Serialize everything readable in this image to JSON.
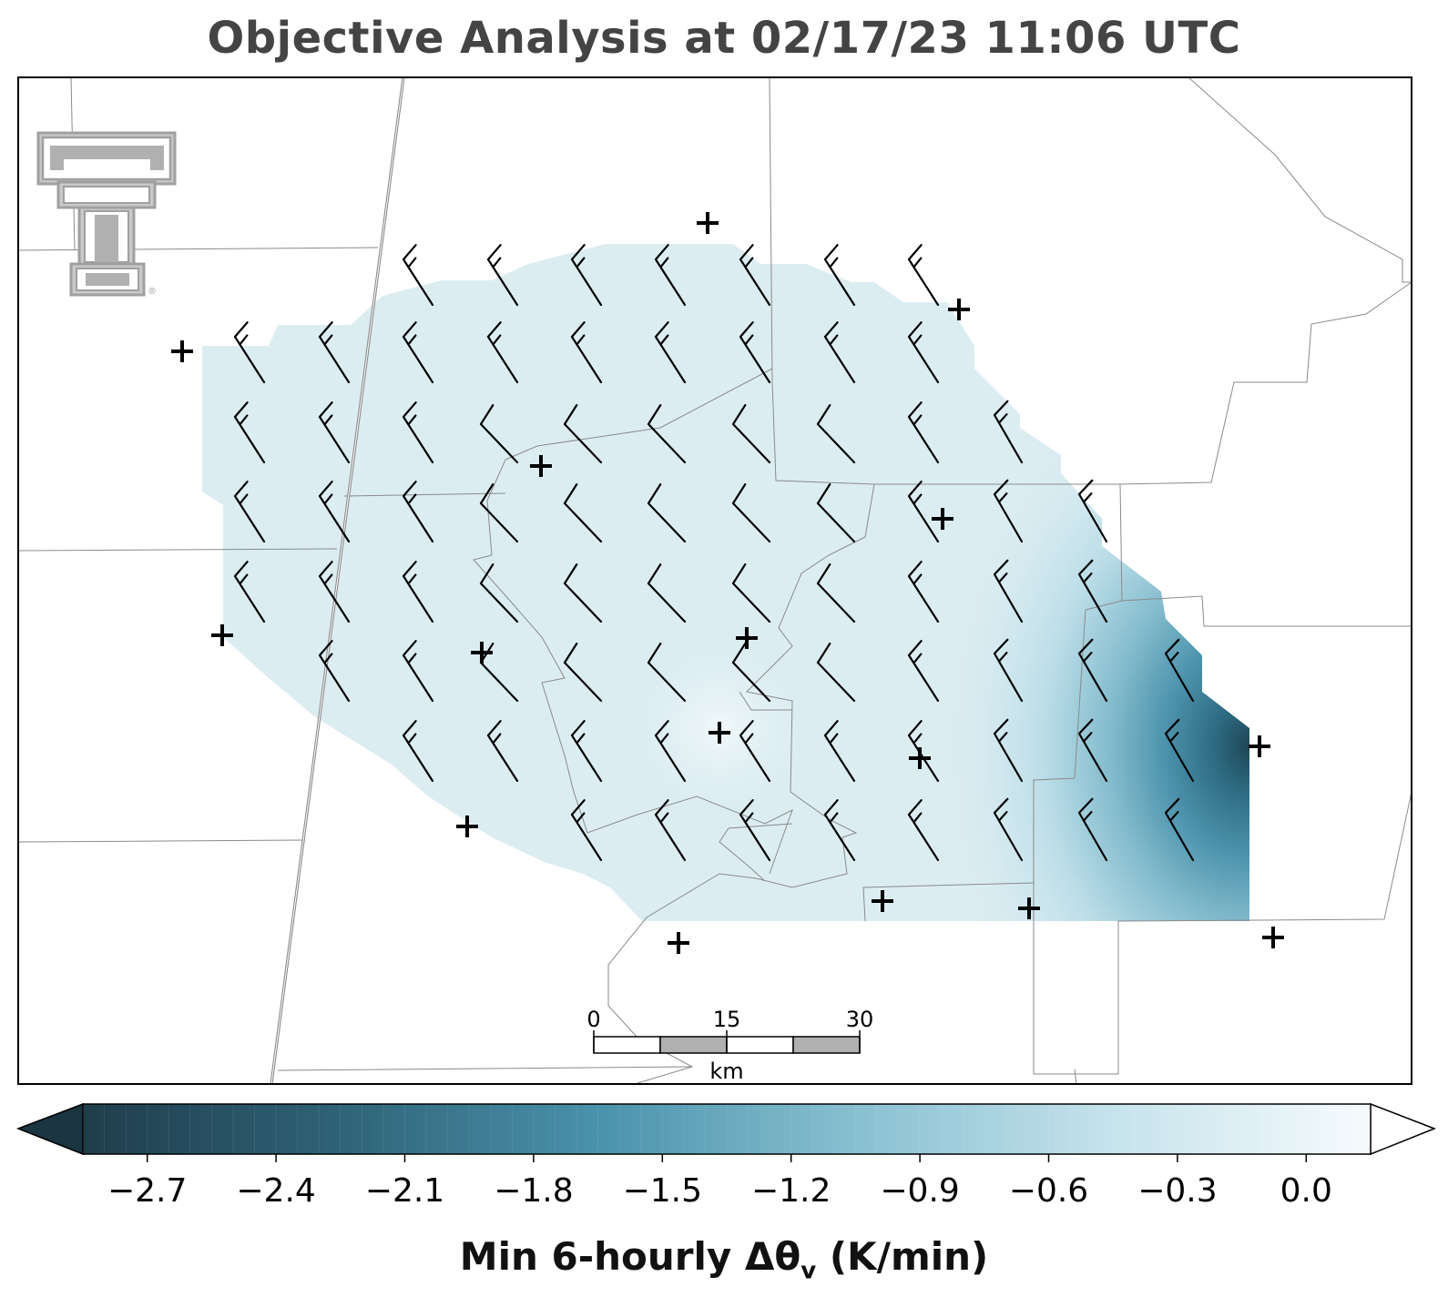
{
  "title": "Objective Analysis at 02/17/23 11:06 UTC",
  "colorbar": {
    "label": "Min 6-hourly Δθ",
    "label_sub": "v",
    "label_units": "(K/min)",
    "ticks": [
      "−2.7",
      "−2.4",
      "−2.1",
      "−1.8",
      "−1.5",
      "−1.2",
      "−0.9",
      "−0.6",
      "−0.3",
      "0.0"
    ],
    "tick_values": [
      -2.7,
      -2.4,
      -2.1,
      -1.8,
      -1.5,
      -1.2,
      -0.9,
      -0.6,
      -0.3,
      0.0
    ],
    "range": [
      -2.85,
      0.15
    ],
    "extend": "both",
    "colors": {
      "min": "#1f3d4b",
      "mid": "#4f95ae",
      "light": "#a9d3e1",
      "max": "#f4fafc"
    }
  },
  "scale_bar": {
    "unit": "km",
    "ticks": [
      "0",
      "15",
      "30"
    ]
  },
  "logo": {
    "name": "Texas Tech double-T",
    "mark": "®",
    "color": "#a0a0a0"
  },
  "field": {
    "variable": "Min 6-hourly Δθv",
    "background_value": -0.25,
    "minimum_value": -2.75,
    "minimum_region": "east-southeast edge"
  },
  "wind_barbs": {
    "count": 83,
    "color": "#000000",
    "flow": "northwest"
  },
  "stations": {
    "marker": "+",
    "count": 16
  }
}
